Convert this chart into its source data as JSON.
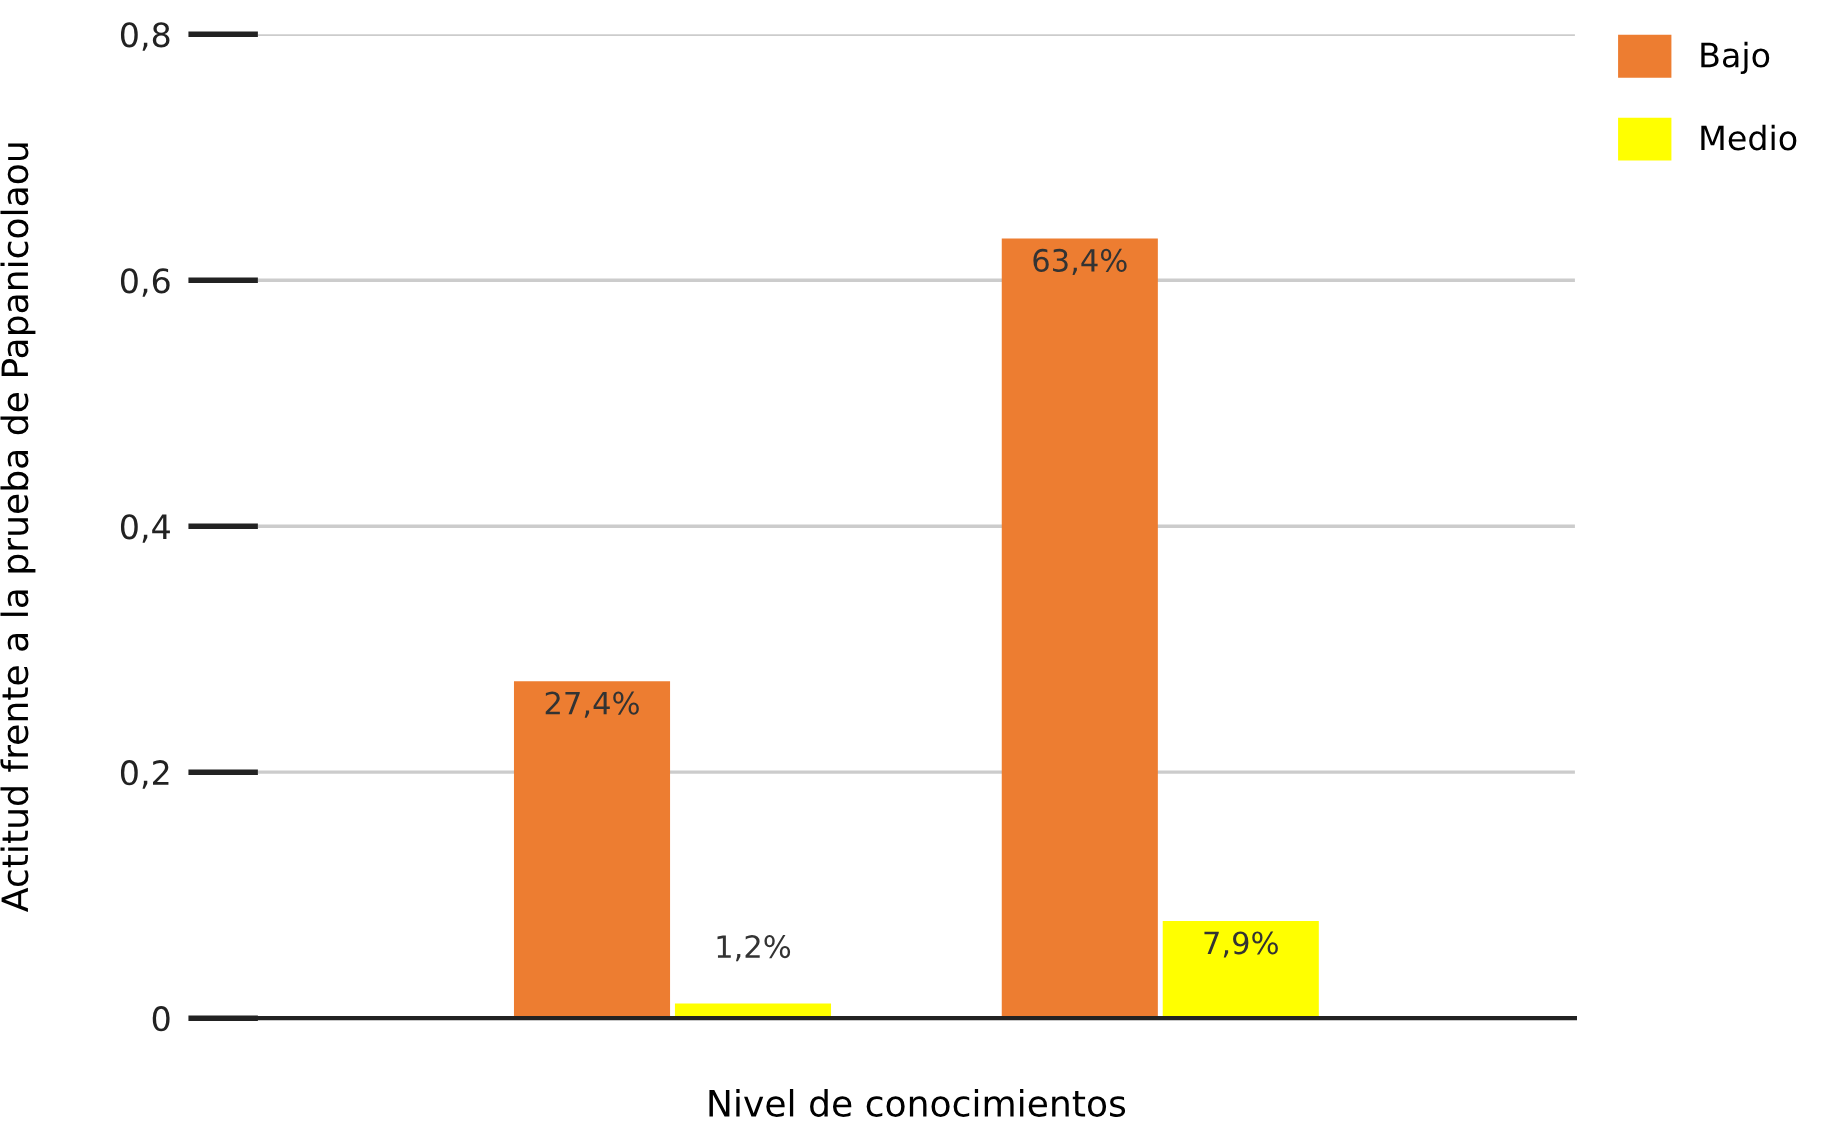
{
  "chart_data": {
    "type": "bar",
    "xlabel": "Nivel de conocimientos",
    "ylabel": "Actitud frente a la prueba de Papanicolaou",
    "categories": [
      null,
      null
    ],
    "series": [
      {
        "name": "Bajo",
        "color": "#ed7d31",
        "values": [
          0.274,
          0.634
        ],
        "value_labels": [
          "27,4%",
          "63,4%"
        ]
      },
      {
        "name": "Medio",
        "color": "#ffff00",
        "values": [
          0.012,
          0.079
        ],
        "value_labels": [
          "1,2%",
          "7,9%"
        ]
      }
    ],
    "ylim": [
      0,
      0.8
    ],
    "yticks": [
      {
        "value": 0,
        "label": "0"
      },
      {
        "value": 0.2,
        "label": "0,2"
      },
      {
        "value": 0.4,
        "label": "0,4"
      },
      {
        "value": 0.6,
        "label": "0,6"
      },
      {
        "value": 0.8,
        "label": "0,8"
      }
    ],
    "grid": "y",
    "legend": "top right"
  }
}
